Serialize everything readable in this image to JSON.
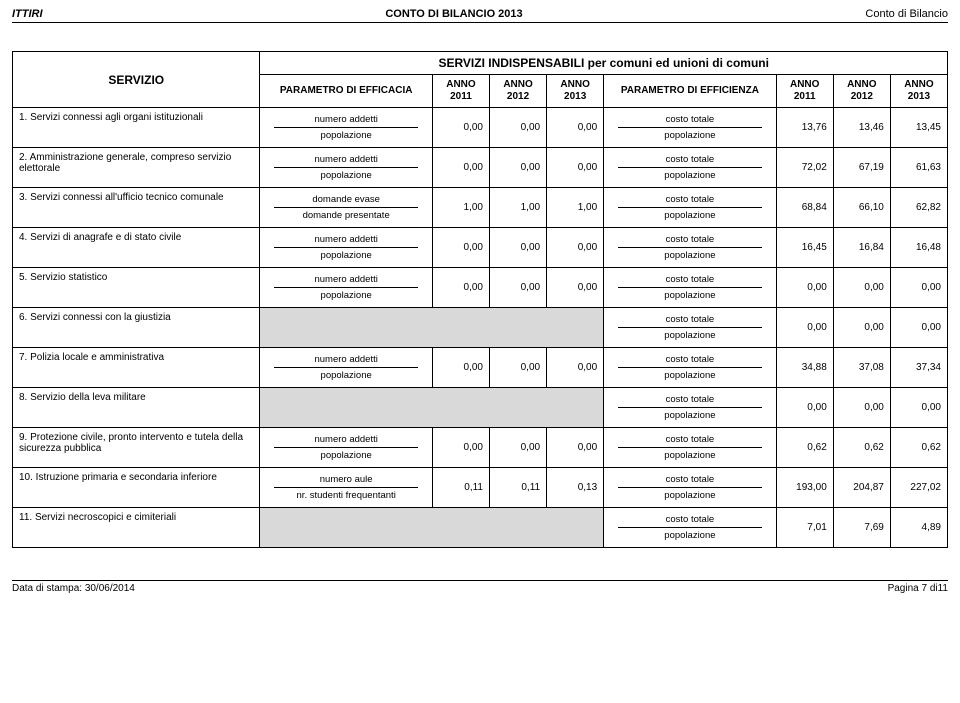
{
  "header": {
    "left": "ITTIRI",
    "center": "CONTO DI BILANCIO 2013",
    "right": "Conto di Bilancio"
  },
  "table": {
    "title": "SERVIZI INDISPENSABILI per comuni ed unioni di comuni",
    "col_servizio": "SERVIZIO",
    "col_param_eff": "PARAMETRO DI EFFICACIA",
    "col_param_effz": "PARAMETRO DI EFFICIENZA",
    "col_anno_2011": "ANNO 2011",
    "col_anno_2012": "ANNO 2012",
    "col_anno_2013": "ANNO 2013"
  },
  "param_labels": {
    "numero_addetti": "numero addetti",
    "popolazione": "popolazione",
    "costo_totale": "costo totale",
    "domande_evase": "domande evase",
    "domande_presentate": "domande presentate",
    "numero_aule": "numero aule",
    "nr_studenti": "nr. studenti frequentanti"
  },
  "rows": [
    {
      "servizio": "1. Servizi connessi agli organi istituzionali",
      "eff_num": "numero_addetti",
      "eff_den": "popolazione",
      "v11": "0,00",
      "v12": "0,00",
      "v13": "0,00",
      "effz_num": "costo_totale",
      "effz_den": "popolazione",
      "w11": "13,76",
      "w12": "13,46",
      "w13": "13,45"
    },
    {
      "servizio": "2. Amministrazione generale, compreso servizio elettorale",
      "eff_num": "numero_addetti",
      "eff_den": "popolazione",
      "v11": "0,00",
      "v12": "0,00",
      "v13": "0,00",
      "effz_num": "costo_totale",
      "effz_den": "popolazione",
      "w11": "72,02",
      "w12": "67,19",
      "w13": "61,63"
    },
    {
      "servizio": "3. Servizi connessi all'ufficio tecnico comunale",
      "eff_num": "domande_evase",
      "eff_den": "domande_presentate",
      "v11": "1,00",
      "v12": "1,00",
      "v13": "1,00",
      "effz_num": "costo_totale",
      "effz_den": "popolazione",
      "w11": "68,84",
      "w12": "66,10",
      "w13": "62,82"
    },
    {
      "servizio": "4. Servizi di anagrafe e di stato civile",
      "eff_num": "numero_addetti",
      "eff_den": "popolazione",
      "v11": "0,00",
      "v12": "0,00",
      "v13": "0,00",
      "effz_num": "costo_totale",
      "effz_den": "popolazione",
      "w11": "16,45",
      "w12": "16,84",
      "w13": "16,48"
    },
    {
      "servizio": "5. Servizio statistico",
      "eff_num": "numero_addetti",
      "eff_den": "popolazione",
      "v11": "0,00",
      "v12": "0,00",
      "v13": "0,00",
      "effz_num": "costo_totale",
      "effz_den": "popolazione",
      "w11": "0,00",
      "w12": "0,00",
      "w13": "0,00"
    },
    {
      "servizio": "6. Servizi connessi con la giustizia",
      "eff_empty": true,
      "effz_num": "costo_totale",
      "effz_den": "popolazione",
      "w11": "0,00",
      "w12": "0,00",
      "w13": "0,00"
    },
    {
      "servizio": "7. Polizia locale e amministrativa",
      "eff_num": "numero_addetti",
      "eff_den": "popolazione",
      "v11": "0,00",
      "v12": "0,00",
      "v13": "0,00",
      "effz_num": "costo_totale",
      "effz_den": "popolazione",
      "w11": "34,88",
      "w12": "37,08",
      "w13": "37,34"
    },
    {
      "servizio": "8. Servizio della leva militare",
      "eff_empty": true,
      "effz_num": "costo_totale",
      "effz_den": "popolazione",
      "w11": "0,00",
      "w12": "0,00",
      "w13": "0,00"
    },
    {
      "servizio": "9. Protezione civile, pronto intervento e tutela della sicurezza pubblica",
      "eff_num": "numero_addetti",
      "eff_den": "popolazione",
      "v11": "0,00",
      "v12": "0,00",
      "v13": "0,00",
      "effz_num": "costo_totale",
      "effz_den": "popolazione",
      "w11": "0,62",
      "w12": "0,62",
      "w13": "0,62"
    },
    {
      "servizio": "10. Istruzione primaria e secondaria inferiore",
      "eff_num": "numero_aule",
      "eff_den": "nr_studenti",
      "v11": "0,11",
      "v12": "0,11",
      "v13": "0,13",
      "effz_num": "costo_totale",
      "effz_den": "popolazione",
      "w11": "193,00",
      "w12": "204,87",
      "w13": "227,02"
    },
    {
      "servizio": "11. Servizi necroscopici e cimiteriali",
      "eff_empty": true,
      "effz_num": "costo_totale",
      "effz_den": "popolazione",
      "w11": "7,01",
      "w12": "7,69",
      "w13": "4,89"
    }
  ],
  "footer": {
    "left": "Data di stampa: 30/06/2014",
    "right": "Pagina 7 di11"
  },
  "colors": {
    "empty_bg": "#d9d9d9",
    "border": "#000000",
    "bg": "#ffffff"
  }
}
